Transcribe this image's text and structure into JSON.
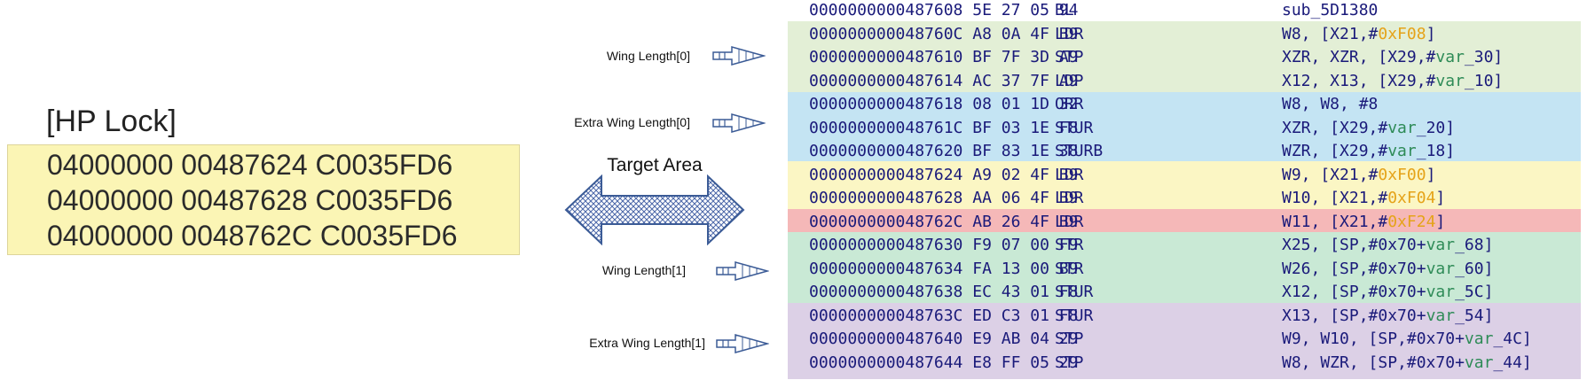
{
  "hp_lock": {
    "title": "[HP Lock]",
    "lines": [
      "04000000 00487624 C0035FD6",
      "04000000 00487628 C0035FD6",
      "04000000 0048762C C0035FD6"
    ]
  },
  "annotations": {
    "wing_length_0": "Wing Length[0]",
    "extra_wing_length_0": "Extra Wing Length[0]",
    "wing_length_1": "Wing Length[1]",
    "extra_wing_length_1": "Extra Wing Length[1]",
    "target_area": "Target Area"
  },
  "colors": {
    "hp_box": "#fbf5b5",
    "group_green_light": "#e3efd6",
    "group_blue": "#c4e4f3",
    "group_yellow": "#fbf6c4",
    "group_red_highlight": "#f5b8b8",
    "group_green": "#c9e9d5",
    "group_purple": "#dcd0e6",
    "arrow_stroke": "#3b5b96"
  },
  "disassembly": [
    {
      "addr": "0000000000487608",
      "bytes": "5E 27 05 94",
      "mnem": "BL",
      "ops": [
        [
          "sub_5D1380",
          ""
        ]
      ]
    },
    {
      "addr": "000000000048760C",
      "bytes": "A8 0A 4F B9",
      "mnem": "LDR",
      "ops": [
        [
          "W8, [X21,#",
          ""
        ],
        [
          "0xF08",
          "hex"
        ],
        [
          "]",
          ""
        ]
      ]
    },
    {
      "addr": "0000000000487610",
      "bytes": "BF 7F 3D A9",
      "mnem": "STP",
      "ops": [
        [
          "XZR, XZR, [X29,#",
          ""
        ],
        [
          "var",
          "var"
        ],
        [
          "_30]",
          ""
        ]
      ]
    },
    {
      "addr": "0000000000487614",
      "bytes": "AC 37 7F A9",
      "mnem": "LDP",
      "ops": [
        [
          "X12, X13, [X29,#",
          ""
        ],
        [
          "var",
          "var"
        ],
        [
          "_10]",
          ""
        ]
      ]
    },
    {
      "addr": "0000000000487618",
      "bytes": "08 01 1D 32",
      "mnem": "ORR",
      "ops": [
        [
          "W8, W8, #8",
          ""
        ]
      ]
    },
    {
      "addr": "000000000048761C",
      "bytes": "BF 03 1E F8",
      "mnem": "STUR",
      "ops": [
        [
          "XZR, [X29,#",
          ""
        ],
        [
          "var",
          "var"
        ],
        [
          "_20]",
          ""
        ]
      ]
    },
    {
      "addr": "0000000000487620",
      "bytes": "BF 83 1E 38",
      "mnem": "STURB",
      "ops": [
        [
          "WZR, [X29,#",
          ""
        ],
        [
          "var",
          "var"
        ],
        [
          "_18]",
          ""
        ]
      ]
    },
    {
      "addr": "0000000000487624",
      "bytes": "A9 02 4F B9",
      "mnem": "LDR",
      "ops": [
        [
          "W9, [X21,#",
          ""
        ],
        [
          "0xF00",
          "hex"
        ],
        [
          "]",
          ""
        ]
      ]
    },
    {
      "addr": "0000000000487628",
      "bytes": "AA 06 4F B9",
      "mnem": "LDR",
      "ops": [
        [
          "W10, [X21,#",
          ""
        ],
        [
          "0xF04",
          "hex"
        ],
        [
          "]",
          ""
        ]
      ]
    },
    {
      "addr": "000000000048762C",
      "bytes": "AB 26 4F B9",
      "mnem": "LDR",
      "ops": [
        [
          "W11, [X21,#",
          ""
        ],
        [
          "0xF24",
          "hex"
        ],
        [
          "]",
          ""
        ]
      ]
    },
    {
      "addr": "0000000000487630",
      "bytes": "F9 07 00 F9",
      "mnem": "STR",
      "ops": [
        [
          "X25, [SP,#0x70+",
          ""
        ],
        [
          "var",
          "var"
        ],
        [
          "_68]",
          ""
        ]
      ]
    },
    {
      "addr": "0000000000487634",
      "bytes": "FA 13 00 B9",
      "mnem": "STR",
      "ops": [
        [
          "W26, [SP,#0x70+",
          ""
        ],
        [
          "var",
          "var"
        ],
        [
          "_60]",
          ""
        ]
      ]
    },
    {
      "addr": "0000000000487638",
      "bytes": "EC 43 01 F8",
      "mnem": "STUR",
      "ops": [
        [
          "X12, [SP,#0x70+",
          ""
        ],
        [
          "var",
          "var"
        ],
        [
          "_5C]",
          ""
        ]
      ]
    },
    {
      "addr": "000000000048763C",
      "bytes": "ED C3 01 F8",
      "mnem": "STUR",
      "ops": [
        [
          "X13, [SP,#0x70+",
          ""
        ],
        [
          "var",
          "var"
        ],
        [
          "_54]",
          ""
        ]
      ]
    },
    {
      "addr": "0000000000487640",
      "bytes": "E9 AB 04 29",
      "mnem": "STP",
      "ops": [
        [
          "W9, W10, [SP,#0x70+",
          ""
        ],
        [
          "var",
          "var"
        ],
        [
          "_4C]",
          ""
        ]
      ]
    },
    {
      "addr": "0000000000487644",
      "bytes": "E8 FF 05 29",
      "mnem": "STP",
      "ops": [
        [
          "W8, WZR, [SP,#0x70+",
          ""
        ],
        [
          "var",
          "var"
        ],
        [
          "_44]",
          ""
        ]
      ]
    }
  ]
}
